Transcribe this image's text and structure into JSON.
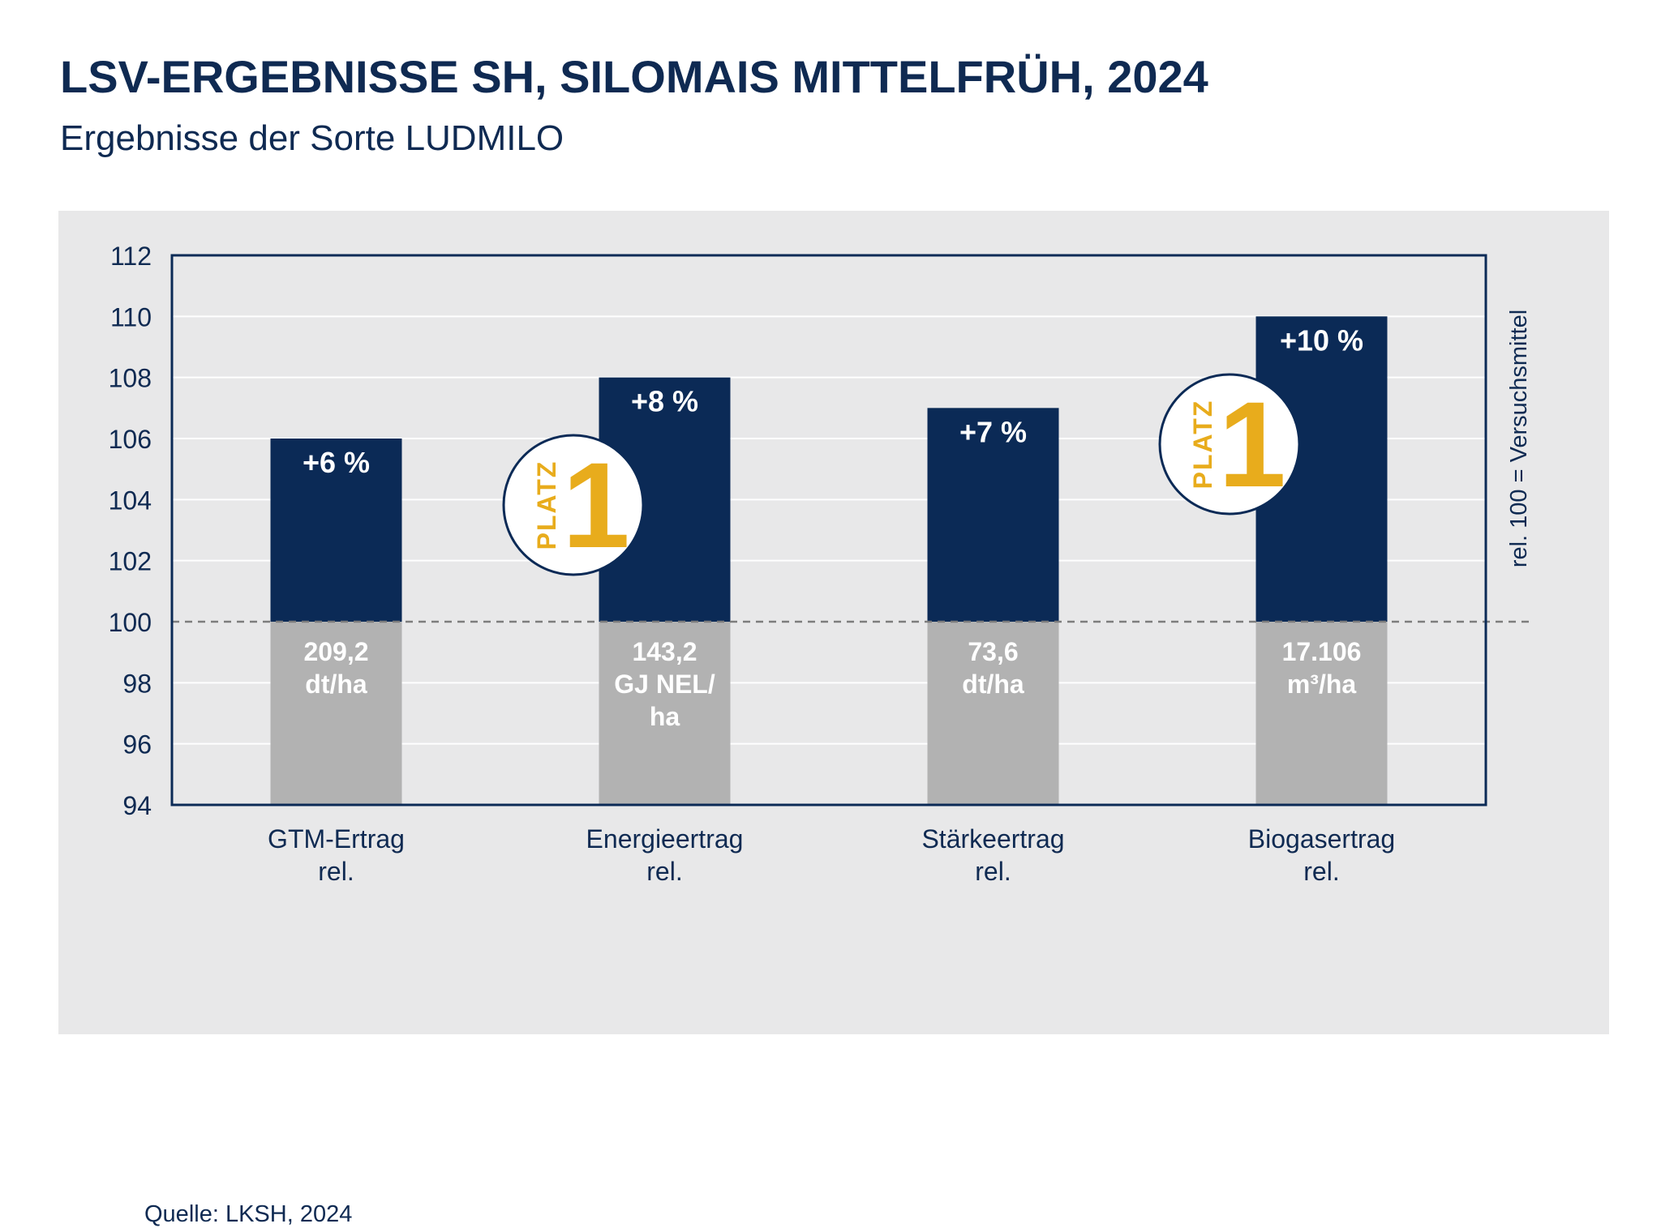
{
  "header": {
    "title": "LSV-ERGEBNISSE SH, SILOMAIS MITTELFRÜH, 2024",
    "subtitle": "Ergebnisse der Sorte LUDMILO"
  },
  "footer": {
    "source": "Quelle: LKSH, 2024"
  },
  "colors": {
    "bar": "#0b2a56",
    "base": "#b2b2b2",
    "accent": "#e8ac1c",
    "text": "#0f2a52",
    "panel": "#e8e8e9"
  },
  "chart_data": {
    "type": "bar",
    "title": "LSV-ERGEBNISSE SH, SILOMAIS MITTELFRÜH, 2024",
    "subtitle": "Ergebnisse der Sorte LUDMILO",
    "ylim": [
      94,
      112
    ],
    "yticks": [
      "94",
      "96",
      "98",
      "100",
      "102",
      "104",
      "106",
      "108",
      "110",
      "112"
    ],
    "reference_line": 100,
    "right_axis_label": "rel. 100 = Versuchsmittel",
    "grid": true,
    "categories": [
      [
        "GTM-Ertrag",
        "rel."
      ],
      [
        "Energieertrag",
        "rel."
      ],
      [
        "Stärkeertrag",
        "rel."
      ],
      [
        "Biogasertrag",
        "rel."
      ]
    ],
    "values": [
      106,
      108,
      107,
      110
    ],
    "labels": [
      "+6 %",
      "+8 %",
      "+7 %",
      "+10 %"
    ],
    "base_values": [
      [
        "209,2",
        "dt/ha"
      ],
      [
        "143,2",
        "GJ NEL/",
        "ha"
      ],
      [
        "73,6",
        "dt/ha"
      ],
      [
        "17.106",
        "m³/ha"
      ]
    ],
    "badges": [
      {
        "category_index": 1,
        "text": "PLATZ",
        "number": "1"
      },
      {
        "category_index": 3,
        "text": "PLATZ",
        "number": "1"
      }
    ]
  }
}
